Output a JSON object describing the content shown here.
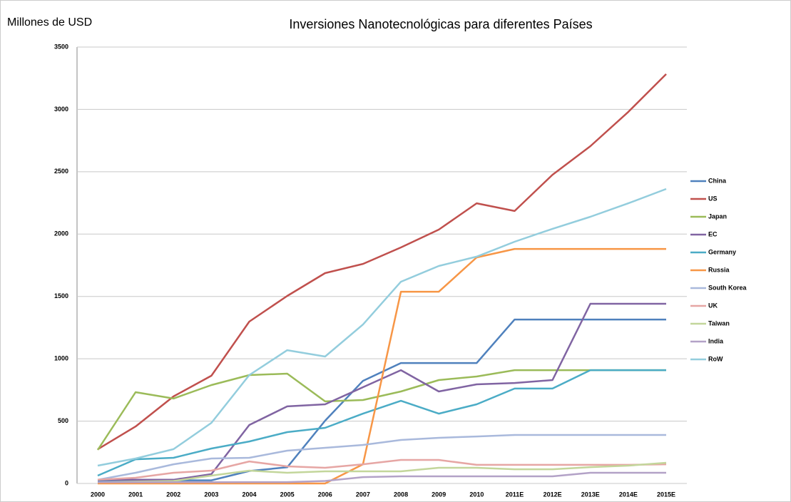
{
  "chart_data": {
    "type": "line",
    "title": "Inversiones Nanotecnológicas para diferentes Países",
    "y_label": "Millones de USD",
    "categories": [
      "2000",
      "2001",
      "2002",
      "2003",
      "2004",
      "2005",
      "2006",
      "2007",
      "2008",
      "2009",
      "2010",
      "2011E",
      "2012E",
      "2013E",
      "2014E",
      "2015E"
    ],
    "ylim": [
      0,
      3500
    ],
    "yticks": [
      0,
      500,
      1000,
      1500,
      2000,
      2500,
      3000,
      3500
    ],
    "grid": true,
    "legend": "right",
    "series": [
      {
        "name": "China",
        "color": "#4f81bd",
        "values": [
          20,
          20,
          25,
          25,
          100,
          130,
          503,
          823,
          966,
          966,
          966,
          1315,
          1315,
          1315,
          1315,
          1315
        ]
      },
      {
        "name": "US",
        "color": "#c0504d",
        "values": [
          274,
          457,
          698,
          864,
          1298,
          1504,
          1687,
          1761,
          1893,
          2036,
          2247,
          2185,
          2476,
          2705,
          2980,
          3283
        ]
      },
      {
        "name": "Japan",
        "color": "#9bbb59",
        "values": [
          269,
          732,
          681,
          789,
          869,
          881,
          658,
          669,
          738,
          829,
          858,
          909,
          909,
          909,
          909,
          909
        ]
      },
      {
        "name": "EC",
        "color": "#8064a2",
        "values": [
          30,
          30,
          30,
          75,
          469,
          618,
          635,
          772,
          909,
          738,
          795,
          806,
          829,
          1441,
          1441,
          1441
        ]
      },
      {
        "name": "Germany",
        "color": "#4bacc6",
        "values": [
          63,
          194,
          206,
          280,
          337,
          412,
          446,
          560,
          663,
          560,
          635,
          761,
          761,
          909,
          909,
          909
        ]
      },
      {
        "name": "Russia",
        "color": "#f79646",
        "values": [
          0,
          0,
          0,
          0,
          0,
          0,
          0,
          154,
          1538,
          1538,
          1813,
          1881,
          1881,
          1881,
          1881,
          1881
        ]
      },
      {
        "name": "South Korea",
        "color": "#a9b9dc",
        "values": [
          30,
          86,
          154,
          200,
          206,
          263,
          286,
          309,
          349,
          366,
          377,
          389,
          389,
          389,
          389,
          389
        ]
      },
      {
        "name": "UK",
        "color": "#e6a6a4",
        "values": [
          30,
          46,
          86,
          103,
          177,
          137,
          126,
          154,
          189,
          189,
          149,
          149,
          149,
          149,
          149,
          154
        ]
      },
      {
        "name": "Taiwan",
        "color": "#c3d69b",
        "values": [
          10,
          15,
          20,
          63,
          103,
          86,
          97,
          97,
          97,
          126,
          126,
          114,
          114,
          131,
          143,
          166
        ]
      },
      {
        "name": "India",
        "color": "#b3a2c7",
        "values": [
          10,
          10,
          10,
          10,
          11,
          11,
          20,
          51,
          57,
          57,
          57,
          57,
          57,
          86,
          86,
          86
        ]
      },
      {
        "name": "RoW",
        "color": "#93cddd",
        "values": [
          143,
          200,
          275,
          486,
          869,
          1069,
          1018,
          1275,
          1618,
          1744,
          1819,
          1939,
          2042,
          2139,
          2247,
          2362
        ]
      }
    ]
  }
}
